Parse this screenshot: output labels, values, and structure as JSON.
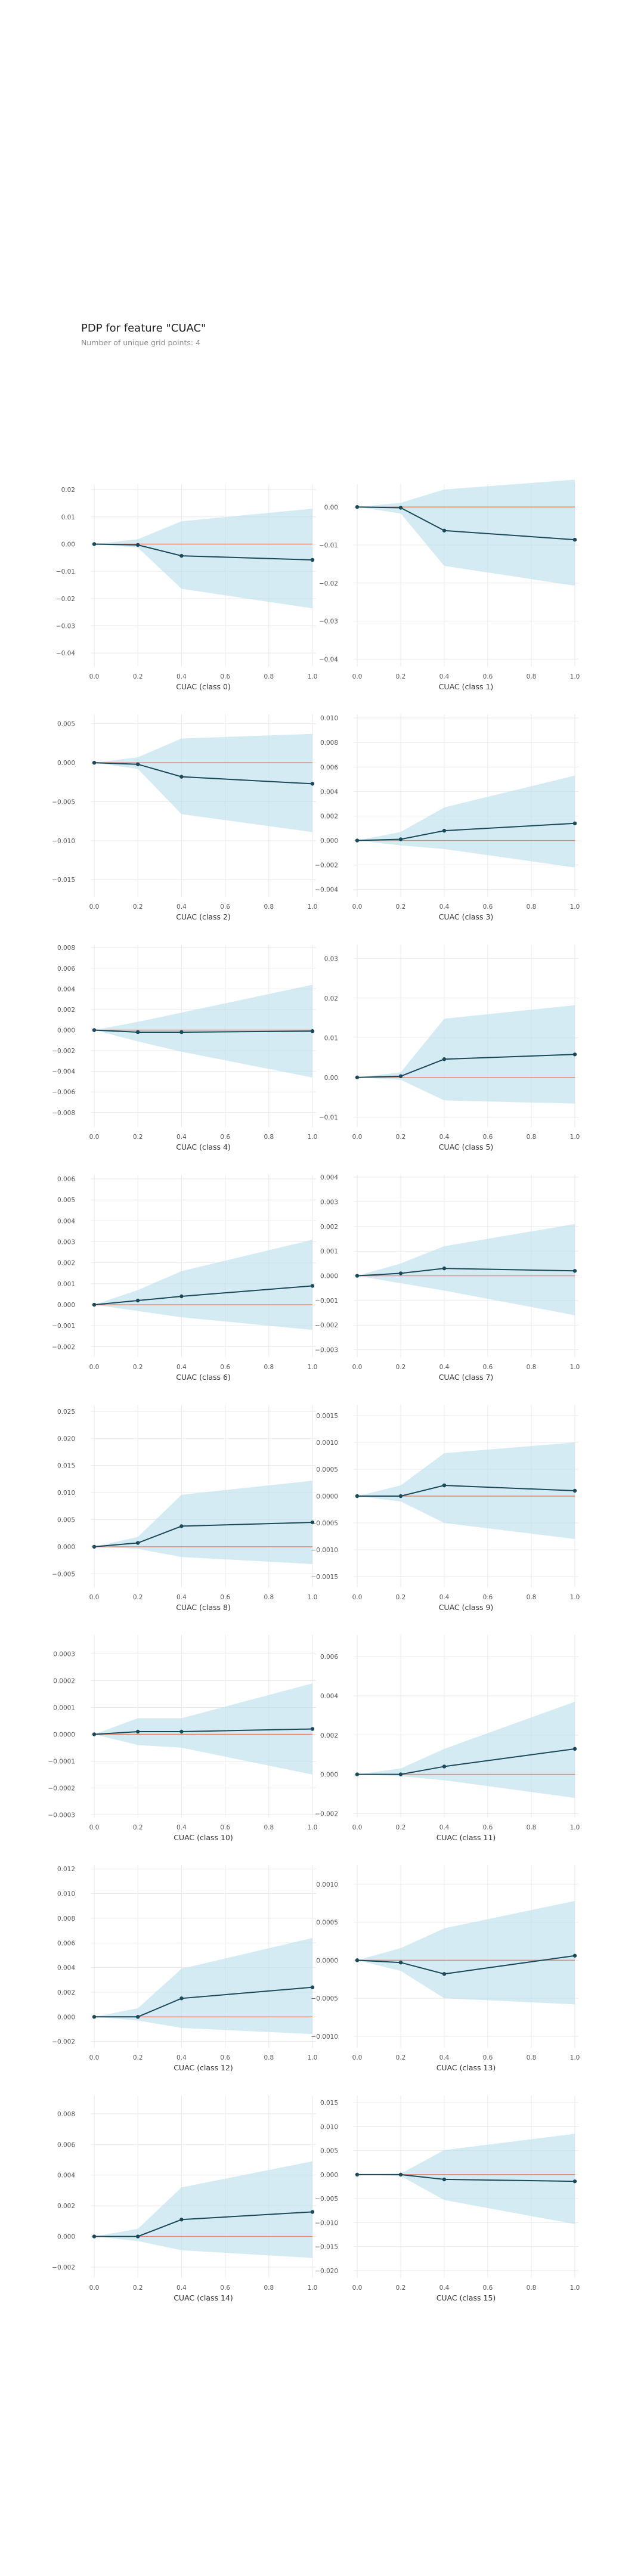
{
  "header": {
    "title": "PDP for feature \"CUAC\"",
    "subtitle": "Number of unique grid points: 4"
  },
  "colors": {
    "line": "#1a4a5a",
    "band": "#bfe0ec",
    "baseline": "#e8836b",
    "grid": "#e9e9e9"
  },
  "chart_data": [
    {
      "type": "line",
      "xlabel": "CUAC (class 0)",
      "x": [
        0,
        0.2,
        0.4,
        1
      ],
      "y": [
        0,
        -0.0003,
        -0.0043,
        -0.0058
      ],
      "band_lower": [
        0,
        -0.0013,
        -0.0164,
        -0.0236
      ],
      "band_upper": [
        0,
        0.0018,
        0.0084,
        0.013
      ],
      "ylim": [
        -0.045,
        0.022
      ],
      "yticks": [
        0.02,
        0.01,
        0,
        -0.01,
        -0.02,
        -0.03,
        -0.04
      ],
      "yticklabels": [
        "0.02",
        "0.01",
        "0.00",
        "−0.01",
        "−0.02",
        "−0.03",
        "−0.04"
      ],
      "xticks": [
        0,
        0.2,
        0.4,
        0.6,
        0.8,
        1.0
      ],
      "xticklabels": [
        "0.0",
        "0.2",
        "0.4",
        "0.6",
        "0.8",
        "1.0"
      ]
    },
    {
      "type": "line",
      "xlabel": "CUAC (class 1)",
      "x": [
        0,
        0.2,
        0.4,
        1
      ],
      "y": [
        0,
        -0.0002,
        -0.0062,
        -0.0086
      ],
      "band_lower": [
        0,
        -0.0017,
        -0.0155,
        -0.0207
      ],
      "band_upper": [
        0,
        0.0011,
        0.0046,
        0.0072
      ],
      "ylim": [
        -0.042,
        0.006
      ],
      "yticks": [
        0,
        -0.01,
        -0.02,
        -0.03,
        -0.04
      ],
      "yticklabels": [
        "0.00",
        "−0.01",
        "−0.02",
        "−0.03",
        "−0.04"
      ],
      "xticks": [
        0,
        0.2,
        0.4,
        0.6,
        0.8,
        1.0
      ],
      "xticklabels": [
        "0.0",
        "0.2",
        "0.4",
        "0.6",
        "0.8",
        "1.0"
      ]
    },
    {
      "type": "line",
      "xlabel": "CUAC (class 2)",
      "x": [
        0,
        0.2,
        0.4,
        1
      ],
      "y": [
        0,
        -0.0002,
        -0.0018,
        -0.0027
      ],
      "band_lower": [
        0,
        -0.0008,
        -0.0066,
        -0.0089
      ],
      "band_upper": [
        0,
        0.0007,
        0.0031,
        0.0037
      ],
      "ylim": [
        -0.0172,
        0.0062
      ],
      "yticks": [
        0.005,
        0,
        -0.005,
        -0.01,
        -0.015
      ],
      "yticklabels": [
        "0.005",
        "0.000",
        "−0.005",
        "−0.010",
        "−0.015"
      ],
      "xticks": [
        0,
        0.2,
        0.4,
        0.6,
        0.8,
        1.0
      ],
      "xticklabels": [
        "0.0",
        "0.2",
        "0.4",
        "0.6",
        "0.8",
        "1.0"
      ]
    },
    {
      "type": "line",
      "xlabel": "CUAC (class 3)",
      "x": [
        0,
        0.2,
        0.4,
        1
      ],
      "y": [
        0,
        0.0001,
        0.0008,
        0.0014
      ],
      "band_lower": [
        0,
        -0.0004,
        -0.0007,
        -0.0022
      ],
      "band_upper": [
        0,
        0.0007,
        0.0027,
        0.0053
      ],
      "ylim": [
        -0.0046,
        0.0103
      ],
      "yticks": [
        0.01,
        0.008,
        0.006,
        0.004,
        0.002,
        0,
        -0.002,
        -0.004
      ],
      "yticklabels": [
        "0.010",
        "0.008",
        "0.006",
        "0.004",
        "0.002",
        "0.000",
        "−0.002",
        "−0.004"
      ],
      "xticks": [
        0,
        0.2,
        0.4,
        0.6,
        0.8,
        1.0
      ],
      "xticklabels": [
        "0.0",
        "0.2",
        "0.4",
        "0.6",
        "0.8",
        "1.0"
      ]
    },
    {
      "type": "line",
      "xlabel": "CUAC (class 4)",
      "x": [
        0,
        0.2,
        0.4,
        1
      ],
      "y": [
        0,
        -0.0002,
        -0.0002,
        -0.0001
      ],
      "band_lower": [
        0,
        -0.0011,
        -0.0021,
        -0.0046
      ],
      "band_upper": [
        0,
        0.0008,
        0.0017,
        0.0044
      ],
      "ylim": [
        -0.0094,
        0.0083
      ],
      "yticks": [
        0.008,
        0.006,
        0.004,
        0.002,
        0,
        -0.002,
        -0.004,
        -0.006,
        -0.008
      ],
      "yticklabels": [
        "0.008",
        "0.006",
        "0.004",
        "0.002",
        "0.000",
        "−0.002",
        "−0.004",
        "−0.006",
        "−0.008"
      ],
      "xticks": [
        0,
        0.2,
        0.4,
        0.6,
        0.8,
        1.0
      ],
      "xticklabels": [
        "0.0",
        "0.2",
        "0.4",
        "0.6",
        "0.8",
        "1.0"
      ]
    },
    {
      "type": "line",
      "xlabel": "CUAC (class 5)",
      "x": [
        0,
        0.2,
        0.4,
        1
      ],
      "y": [
        0,
        0.0003,
        0.0046,
        0.0058
      ],
      "band_lower": [
        0,
        -0.0006,
        -0.0058,
        -0.0066
      ],
      "band_upper": [
        0,
        0.0013,
        0.0148,
        0.0182
      ],
      "ylim": [
        -0.0125,
        0.0335
      ],
      "yticks": [
        0.03,
        0.02,
        0.01,
        0,
        -0.01
      ],
      "yticklabels": [
        "0.03",
        "0.02",
        "0.01",
        "0.00",
        "−0.01"
      ],
      "xticks": [
        0,
        0.2,
        0.4,
        0.6,
        0.8,
        1.0
      ],
      "xticklabels": [
        "0.0",
        "0.2",
        "0.4",
        "0.6",
        "0.8",
        "1.0"
      ]
    },
    {
      "type": "line",
      "xlabel": "CUAC (class 6)",
      "x": [
        0,
        0.2,
        0.4,
        1
      ],
      "y": [
        0,
        0.0002,
        0.0004,
        0.0009
      ],
      "band_lower": [
        0,
        -0.0003,
        -0.0006,
        -0.0012
      ],
      "band_upper": [
        0,
        0.0007,
        0.0016,
        0.0031
      ],
      "ylim": [
        -0.0025,
        0.0062
      ],
      "yticks": [
        0.006,
        0.005,
        0.004,
        0.003,
        0.002,
        0.001,
        0,
        -0.001,
        -0.002
      ],
      "yticklabels": [
        "0.006",
        "0.005",
        "0.004",
        "0.003",
        "0.002",
        "0.001",
        "0.000",
        "−0.001",
        "−0.002"
      ],
      "xticks": [
        0,
        0.2,
        0.4,
        0.6,
        0.8,
        1.0
      ],
      "xticklabels": [
        "0.0",
        "0.2",
        "0.4",
        "0.6",
        "0.8",
        "1.0"
      ]
    },
    {
      "type": "line",
      "xlabel": "CUAC (class 7)",
      "x": [
        0,
        0.2,
        0.4,
        1
      ],
      "y": [
        0,
        0.0001,
        0.0003,
        0.0002
      ],
      "band_lower": [
        0,
        -0.0003,
        -0.0006,
        -0.0016
      ],
      "band_upper": [
        0,
        0.0005,
        0.0012,
        0.0021
      ],
      "ylim": [
        -0.0033,
        0.0041
      ],
      "yticks": [
        0.004,
        0.003,
        0.002,
        0.001,
        0,
        -0.001,
        -0.002,
        -0.003
      ],
      "yticklabels": [
        "0.004",
        "0.003",
        "0.002",
        "0.001",
        "0.000",
        "−0.001",
        "−0.002",
        "−0.003"
      ],
      "xticks": [
        0,
        0.2,
        0.4,
        0.6,
        0.8,
        1.0
      ],
      "xticklabels": [
        "0.0",
        "0.2",
        "0.4",
        "0.6",
        "0.8",
        "1.0"
      ]
    },
    {
      "type": "line",
      "xlabel": "CUAC (class 8)",
      "x": [
        0,
        0.2,
        0.4,
        1
      ],
      "y": [
        0,
        0.0007,
        0.0038,
        0.0045
      ],
      "band_lower": [
        0,
        -0.0004,
        -0.0019,
        -0.0032
      ],
      "band_upper": [
        0,
        0.0018,
        0.0096,
        0.0122
      ],
      "ylim": [
        -0.0075,
        0.0262
      ],
      "yticks": [
        0.025,
        0.02,
        0.015,
        0.01,
        0.005,
        0,
        -0.005
      ],
      "yticklabels": [
        "0.025",
        "0.020",
        "0.015",
        "0.010",
        "0.005",
        "0.000",
        "−0.005"
      ],
      "xticks": [
        0,
        0.2,
        0.4,
        0.6,
        0.8,
        1.0
      ],
      "xticklabels": [
        "0.0",
        "0.2",
        "0.4",
        "0.6",
        "0.8",
        "1.0"
      ]
    },
    {
      "type": "line",
      "xlabel": "CUAC (class 9)",
      "x": [
        0,
        0.2,
        0.4,
        1
      ],
      "y": [
        0,
        0.0,
        0.0002,
        0.0001
      ],
      "band_lower": [
        0,
        -0.0001,
        -0.0005,
        -0.0008
      ],
      "band_upper": [
        0,
        0.0002,
        0.0008,
        0.001
      ],
      "ylim": [
        -0.0017,
        0.0017
      ],
      "yticks": [
        0.0015,
        0.001,
        0.0005,
        0,
        -0.0005,
        -0.001,
        -0.0015
      ],
      "yticklabels": [
        "0.0015",
        "0.0010",
        "0.0005",
        "0.0000",
        "−0.0005",
        "−0.0010",
        "−0.0015"
      ],
      "xticks": [
        0,
        0.2,
        0.4,
        0.6,
        0.8,
        1.0
      ],
      "xticklabels": [
        "0.0",
        "0.2",
        "0.4",
        "0.6",
        "0.8",
        "1.0"
      ]
    },
    {
      "type": "line",
      "xlabel": "CUAC (class 10)",
      "x": [
        0,
        0.2,
        0.4,
        1
      ],
      "y": [
        0,
        1e-05,
        1e-05,
        2e-05
      ],
      "band_lower": [
        0,
        -4e-05,
        -5e-05,
        -0.00015
      ],
      "band_upper": [
        0,
        6e-05,
        6e-05,
        0.00019
      ],
      "ylim": [
        -0.00031,
        0.00037
      ],
      "yticks": [
        0.0003,
        0.0002,
        0.0001,
        0,
        -0.0001,
        -0.0002,
        -0.0003
      ],
      "yticklabels": [
        "0.0003",
        "0.0002",
        "0.0001",
        "0.0000",
        "−0.0001",
        "−0.0002",
        "−0.0003"
      ],
      "xticks": [
        0,
        0.2,
        0.4,
        0.6,
        0.8,
        1.0
      ],
      "xticklabels": [
        "0.0",
        "0.2",
        "0.4",
        "0.6",
        "0.8",
        "1.0"
      ]
    },
    {
      "type": "line",
      "xlabel": "CUAC (class 11)",
      "x": [
        0,
        0.2,
        0.4,
        1
      ],
      "y": [
        0,
        0.0,
        0.0004,
        0.0013
      ],
      "band_lower": [
        0,
        -0.0001,
        -0.0003,
        -0.0012
      ],
      "band_upper": [
        0,
        0.0003,
        0.0013,
        0.0037
      ],
      "ylim": [
        -0.0022,
        0.0071
      ],
      "yticks": [
        0.006,
        0.004,
        0.002,
        0,
        -0.002
      ],
      "yticklabels": [
        "0.006",
        "0.004",
        "0.002",
        "0.000",
        "−0.002"
      ],
      "xticks": [
        0,
        0.2,
        0.4,
        0.6,
        0.8,
        1.0
      ],
      "xticklabels": [
        "0.0",
        "0.2",
        "0.4",
        "0.6",
        "0.8",
        "1.0"
      ]
    },
    {
      "type": "line",
      "xlabel": "CUAC (class 12)",
      "x": [
        0,
        0.2,
        0.4,
        1
      ],
      "y": [
        0,
        0.0,
        0.0015,
        0.0024
      ],
      "band_lower": [
        0,
        -0.0003,
        -0.0009,
        -0.0014
      ],
      "band_upper": [
        0,
        0.0007,
        0.0039,
        0.0064
      ],
      "ylim": [
        -0.0025,
        0.0123
      ],
      "yticks": [
        0.012,
        0.01,
        0.008,
        0.006,
        0.004,
        0.002,
        0,
        -0.002
      ],
      "yticklabels": [
        "0.012",
        "0.010",
        "0.008",
        "0.006",
        "0.004",
        "0.002",
        "0.000",
        "−0.002"
      ],
      "xticks": [
        0,
        0.2,
        0.4,
        0.6,
        0.8,
        1.0
      ],
      "xticklabels": [
        "0.0",
        "0.2",
        "0.4",
        "0.6",
        "0.8",
        "1.0"
      ]
    },
    {
      "type": "line",
      "xlabel": "CUAC (class 13)",
      "x": [
        0,
        0.2,
        0.4,
        1
      ],
      "y": [
        0,
        -3e-05,
        -0.00018,
        6e-05
      ],
      "band_lower": [
        0,
        -0.00014,
        -0.0005,
        -0.00058
      ],
      "band_upper": [
        0,
        0.00016,
        0.00042,
        0.00078
      ],
      "ylim": [
        -0.00115,
        0.00125
      ],
      "yticks": [
        0.001,
        0.0005,
        0,
        -0.0005,
        -0.001
      ],
      "yticklabels": [
        "0.0010",
        "0.0005",
        "0.0000",
        "−0.0005",
        "−0.0010"
      ],
      "xticks": [
        0,
        0.2,
        0.4,
        0.6,
        0.8,
        1.0
      ],
      "xticklabels": [
        "0.0",
        "0.2",
        "0.4",
        "0.6",
        "0.8",
        "1.0"
      ]
    },
    {
      "type": "line",
      "xlabel": "CUAC (class 14)",
      "x": [
        0,
        0.2,
        0.4,
        1
      ],
      "y": [
        0,
        0.0,
        0.0011,
        0.0016
      ],
      "band_lower": [
        0,
        -0.0003,
        -0.0009,
        -0.0014
      ],
      "band_upper": [
        0,
        0.0005,
        0.0032,
        0.0049
      ],
      "ylim": [
        -0.0027,
        0.0092
      ],
      "yticks": [
        0.008,
        0.006,
        0.004,
        0.002,
        0,
        -0.002
      ],
      "yticklabels": [
        "0.008",
        "0.006",
        "0.004",
        "0.002",
        "0.000",
        "−0.002"
      ],
      "xticks": [
        0,
        0.2,
        0.4,
        0.6,
        0.8,
        1.0
      ],
      "xticklabels": [
        "0.0",
        "0.2",
        "0.4",
        "0.6",
        "0.8",
        "1.0"
      ]
    },
    {
      "type": "line",
      "xlabel": "CUAC (class 15)",
      "x": [
        0,
        0.2,
        0.4,
        1
      ],
      "y": [
        0,
        0.0,
        -0.001,
        -0.0014
      ],
      "band_lower": [
        0,
        -0.0003,
        -0.0053,
        -0.0103
      ],
      "band_upper": [
        0,
        0.0002,
        0.0051,
        0.0085
      ],
      "ylim": [
        -0.0215,
        0.0165
      ],
      "yticks": [
        0.015,
        0.01,
        0.005,
        0,
        -0.005,
        -0.01,
        -0.015,
        -0.02
      ],
      "yticklabels": [
        "0.015",
        "0.010",
        "0.005",
        "0.000",
        "−0.005",
        "−0.010",
        "−0.015",
        "−0.020"
      ],
      "xticks": [
        0,
        0.2,
        0.4,
        0.6,
        0.8,
        1.0
      ],
      "xticklabels": [
        "0.0",
        "0.2",
        "0.4",
        "0.6",
        "0.8",
        "1.0"
      ]
    }
  ]
}
